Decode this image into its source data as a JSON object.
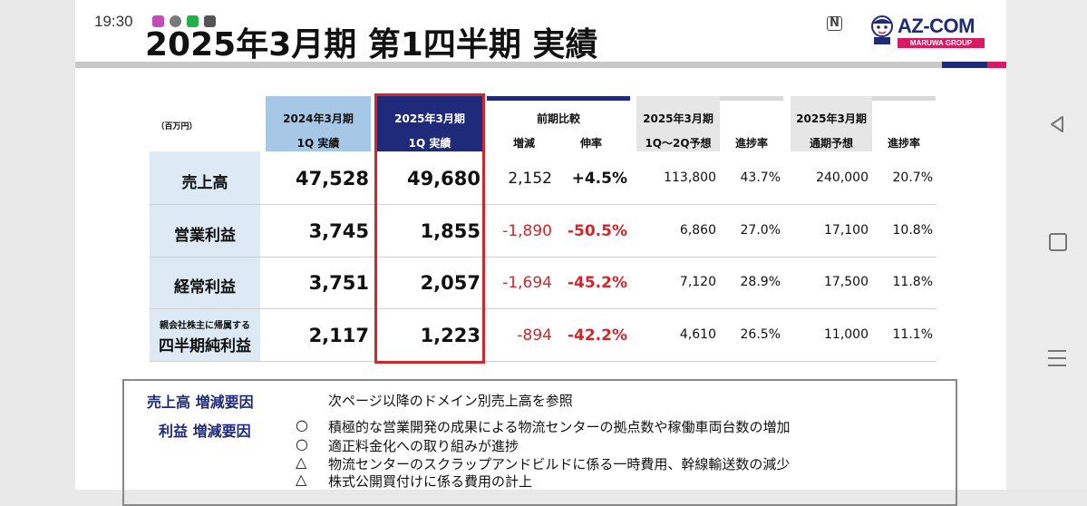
{
  "status_bar": {
    "time": "19:30",
    "nfc": "N"
  },
  "slide": {
    "title": "2025年3月期 第1四半期 実績",
    "logo": {
      "name": "AZ-COM",
      "sub": "MARUWA GROUP"
    }
  },
  "table": {
    "unit_label": "（百万円）",
    "headers": {
      "prev_1q_line1": "2024年3月期",
      "prev_1q_line2": "1Q 実績",
      "cur_1q_line1": "2025年3月期",
      "cur_1q_line2": "1Q 実績",
      "yoy_group": "前期比較",
      "yoy_diff": "増減",
      "yoy_rate": "伸率",
      "h1_line1": "2025年3月期",
      "h1_line2": "1Q～2Q予想",
      "h1_progress": "進捗率",
      "fy_line1": "2025年3月期",
      "fy_line2": "通期予想",
      "fy_progress": "進捗率"
    },
    "rows": [
      {
        "label": "売上高",
        "label_small": "",
        "prev": "47,528",
        "cur": "49,680",
        "diff": "2,152",
        "rate": "+4.5%",
        "h1_forecast": "113,800",
        "h1_progress": "43.7%",
        "fy_forecast": "240,000",
        "fy_progress": "20.7%"
      },
      {
        "label": "営業利益",
        "label_small": "",
        "prev": "3,745",
        "cur": "1,855",
        "diff": "-1,890",
        "rate": "-50.5%",
        "h1_forecast": "6,860",
        "h1_progress": "27.0%",
        "fy_forecast": "17,100",
        "fy_progress": "10.8%"
      },
      {
        "label": "経常利益",
        "label_small": "",
        "prev": "3,751",
        "cur": "2,057",
        "diff": "-1,694",
        "rate": "-45.2%",
        "h1_forecast": "7,120",
        "h1_progress": "28.9%",
        "fy_forecast": "17,500",
        "fy_progress": "11.8%"
      },
      {
        "label": "四半期純利益",
        "label_small": "親会社株主に帰属する",
        "prev": "2,117",
        "cur": "1,223",
        "diff": "-894",
        "rate": "-42.2%",
        "h1_forecast": "4,610",
        "h1_progress": "26.5%",
        "fy_forecast": "11,000",
        "fy_progress": "11.1%"
      }
    ]
  },
  "notes": {
    "sales_heading": "売上高 増減要因",
    "sales_text": "次ページ以降のドメイン別売上高を参照",
    "profit_heading": "利益 増減要因",
    "profit_items": [
      {
        "mark": "○",
        "text": "積極的な営業開発の成果による物流センターの拠点数や稼働車両台数の増加"
      },
      {
        "mark": "○",
        "text": "適正料金化への取り組みが進捗"
      },
      {
        "mark": "△",
        "text": "物流センターのスクラップアンドビルドに係る一時費用、幹線輸送数の減少"
      },
      {
        "mark": "△",
        "text": "株式公開買付けに係る費用の計上"
      }
    ]
  },
  "colors": {
    "navy": "#1f2a7a",
    "pink": "#d81b60",
    "red": "#d4252a",
    "light_blue": "#ddeaf5",
    "mid_blue": "#a7c7e7",
    "gray_header": "#d9d9d9"
  }
}
